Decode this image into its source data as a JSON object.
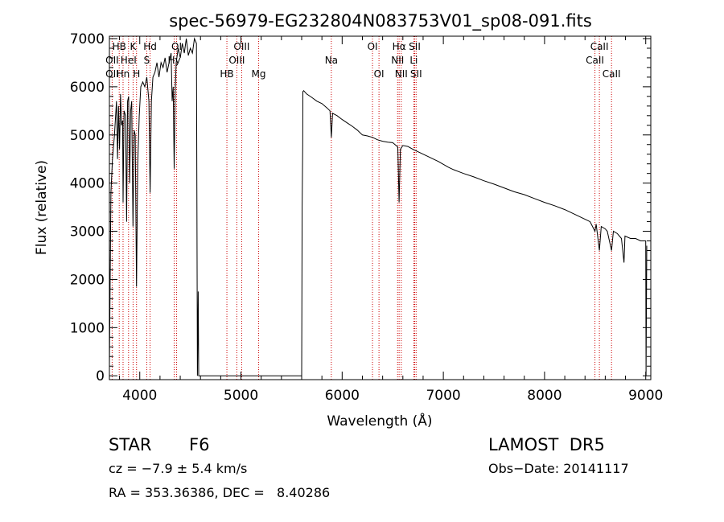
{
  "chart_data": {
    "type": "line",
    "title": "spec-56979-EG232804N083753V01_sp08-091.fits",
    "xlabel": "Wavelength (Å)",
    "ylabel": "Flux (relative)",
    "xlim": [
      3700,
      9050
    ],
    "ylim": [
      -80,
      7050
    ],
    "xticks": [
      4000,
      5000,
      6000,
      7000,
      8000,
      9000
    ],
    "yticks": [
      0,
      1000,
      2000,
      3000,
      4000,
      5000,
      6000,
      7000
    ],
    "grid": false,
    "series": [
      {
        "points": [
          [
            3700,
            200
          ],
          [
            3715,
            3800
          ],
          [
            3730,
            4500
          ],
          [
            3750,
            5000
          ],
          [
            3770,
            5700
          ],
          [
            3780,
            4500
          ],
          [
            3790,
            5600
          ],
          [
            3800,
            4700
          ],
          [
            3810,
            5850
          ],
          [
            3820,
            5200
          ],
          [
            3830,
            5300
          ],
          [
            3835,
            3600
          ],
          [
            3845,
            5500
          ],
          [
            3860,
            5400
          ],
          [
            3870,
            3200
          ],
          [
            3880,
            5700
          ],
          [
            3890,
            5800
          ],
          [
            3900,
            4000
          ],
          [
            3910,
            5500
          ],
          [
            3920,
            5700
          ],
          [
            3933,
            3100
          ],
          [
            3945,
            5100
          ],
          [
            3955,
            5000
          ],
          [
            3968,
            1850
          ],
          [
            3980,
            4400
          ],
          [
            3995,
            5400
          ],
          [
            4010,
            6000
          ],
          [
            4030,
            6100
          ],
          [
            4050,
            6000
          ],
          [
            4070,
            6200
          ],
          [
            4090,
            5700
          ],
          [
            4102,
            3800
          ],
          [
            4115,
            5700
          ],
          [
            4130,
            6200
          ],
          [
            4150,
            6300
          ],
          [
            4170,
            6500
          ],
          [
            4190,
            6200
          ],
          [
            4210,
            6500
          ],
          [
            4230,
            6400
          ],
          [
            4250,
            6600
          ],
          [
            4270,
            6300
          ],
          [
            4290,
            6500
          ],
          [
            4310,
            6700
          ],
          [
            4320,
            5700
          ],
          [
            4330,
            6000
          ],
          [
            4340,
            4300
          ],
          [
            4350,
            5900
          ],
          [
            4360,
            6500
          ],
          [
            4380,
            6800
          ],
          [
            4400,
            6600
          ],
          [
            4420,
            6900
          ],
          [
            4440,
            6700
          ],
          [
            4460,
            7000
          ],
          [
            4480,
            6650
          ],
          [
            4500,
            6800
          ],
          [
            4520,
            6700
          ],
          [
            4540,
            7000
          ],
          [
            4560,
            6900
          ],
          [
            4570,
            0
          ],
          [
            4578,
            1750
          ],
          [
            4582,
            0
          ],
          [
            5600,
            0
          ],
          [
            5605,
            3500
          ],
          [
            5610,
            4800
          ],
          [
            5612,
            5900
          ],
          [
            5620,
            5920
          ],
          [
            5650,
            5850
          ],
          [
            5700,
            5780
          ],
          [
            5750,
            5700
          ],
          [
            5800,
            5650
          ],
          [
            5850,
            5560
          ],
          [
            5880,
            5500
          ],
          [
            5893,
            4950
          ],
          [
            5905,
            5450
          ],
          [
            5950,
            5400
          ],
          [
            6000,
            5320
          ],
          [
            6050,
            5250
          ],
          [
            6100,
            5180
          ],
          [
            6150,
            5100
          ],
          [
            6200,
            5000
          ],
          [
            6250,
            4980
          ],
          [
            6300,
            4950
          ],
          [
            6350,
            4900
          ],
          [
            6400,
            4870
          ],
          [
            6450,
            4850
          ],
          [
            6500,
            4840
          ],
          [
            6550,
            4750
          ],
          [
            6563,
            3600
          ],
          [
            6575,
            4700
          ],
          [
            6600,
            4780
          ],
          [
            6650,
            4760
          ],
          [
            6700,
            4700
          ],
          [
            6750,
            4650
          ],
          [
            6800,
            4600
          ],
          [
            6850,
            4550
          ],
          [
            6900,
            4500
          ],
          [
            6950,
            4450
          ],
          [
            7000,
            4390
          ],
          [
            7050,
            4330
          ],
          [
            7100,
            4280
          ],
          [
            7150,
            4240
          ],
          [
            7200,
            4200
          ],
          [
            7300,
            4130
          ],
          [
            7400,
            4050
          ],
          [
            7500,
            3980
          ],
          [
            7600,
            3900
          ],
          [
            7700,
            3820
          ],
          [
            7800,
            3760
          ],
          [
            7900,
            3680
          ],
          [
            8000,
            3600
          ],
          [
            8100,
            3530
          ],
          [
            8200,
            3450
          ],
          [
            8300,
            3350
          ],
          [
            8400,
            3250
          ],
          [
            8450,
            3200
          ],
          [
            8498,
            3000
          ],
          [
            8510,
            3150
          ],
          [
            8542,
            2600
          ],
          [
            8560,
            3100
          ],
          [
            8600,
            3050
          ],
          [
            8620,
            3000
          ],
          [
            8662,
            2600
          ],
          [
            8680,
            3000
          ],
          [
            8720,
            2950
          ],
          [
            8760,
            2850
          ],
          [
            8785,
            2350
          ],
          [
            8795,
            2900
          ],
          [
            8850,
            2850
          ],
          [
            8900,
            2850
          ],
          [
            8950,
            2800
          ],
          [
            9000,
            2800
          ],
          [
            9003,
            0
          ],
          [
            9010,
            2700
          ]
        ]
      }
    ],
    "lines": [
      {
        "label": "HB",
        "x": 3797,
        "row": 0
      },
      {
        "label": "OII",
        "x": 3727,
        "row": 1
      },
      {
        "label": "OII",
        "x": 3727,
        "row": 2
      },
      {
        "label": "HeI",
        "x": 3889,
        "row": 1
      },
      {
        "label": "Hn",
        "x": 3835,
        "row": 2
      },
      {
        "label": "K",
        "x": 3934,
        "row": 0
      },
      {
        "label": "H",
        "x": 3968,
        "row": 2
      },
      {
        "label": "Hd",
        "x": 4102,
        "row": 0
      },
      {
        "label": "S",
        "x": 4069,
        "row": 1
      },
      {
        "label": "OI",
        "x": 4364,
        "row": 0
      },
      {
        "label": "Hy",
        "x": 4340,
        "row": 1
      },
      {
        "label": "OIII",
        "x": 5007,
        "row": 0
      },
      {
        "label": "OIII",
        "x": 4959,
        "row": 1
      },
      {
        "label": "HB",
        "x": 4861,
        "row": 2
      },
      {
        "label": "Mg",
        "x": 5175,
        "row": 2
      },
      {
        "label": "Na",
        "x": 5893,
        "row": 1
      },
      {
        "label": "OI",
        "x": 6300,
        "row": 0
      },
      {
        "label": "OI",
        "x": 6364,
        "row": 2
      },
      {
        "label": "Hα",
        "x": 6563,
        "row": 0
      },
      {
        "label": "NII",
        "x": 6548,
        "row": 1
      },
      {
        "label": "NII",
        "x": 6584,
        "row": 2
      },
      {
        "label": "SII",
        "x": 6717,
        "row": 0
      },
      {
        "label": "Li",
        "x": 6708,
        "row": 1
      },
      {
        "label": "SII",
        "x": 6731,
        "row": 2
      },
      {
        "label": "CaII",
        "x": 8542,
        "row": 0
      },
      {
        "label": "CaII",
        "x": 8498,
        "row": 1
      },
      {
        "label": "CaII",
        "x": 8662,
        "row": 2
      }
    ]
  },
  "info": {
    "object_class": "STAR",
    "subclass": "F6",
    "survey": "LAMOST  DR5",
    "cz": "cz = −7.9 ± 5.4 km/s",
    "obs_date": "Obs−Date: 20141117",
    "coords": "RA = 353.36386, DEC =   8.40286"
  }
}
